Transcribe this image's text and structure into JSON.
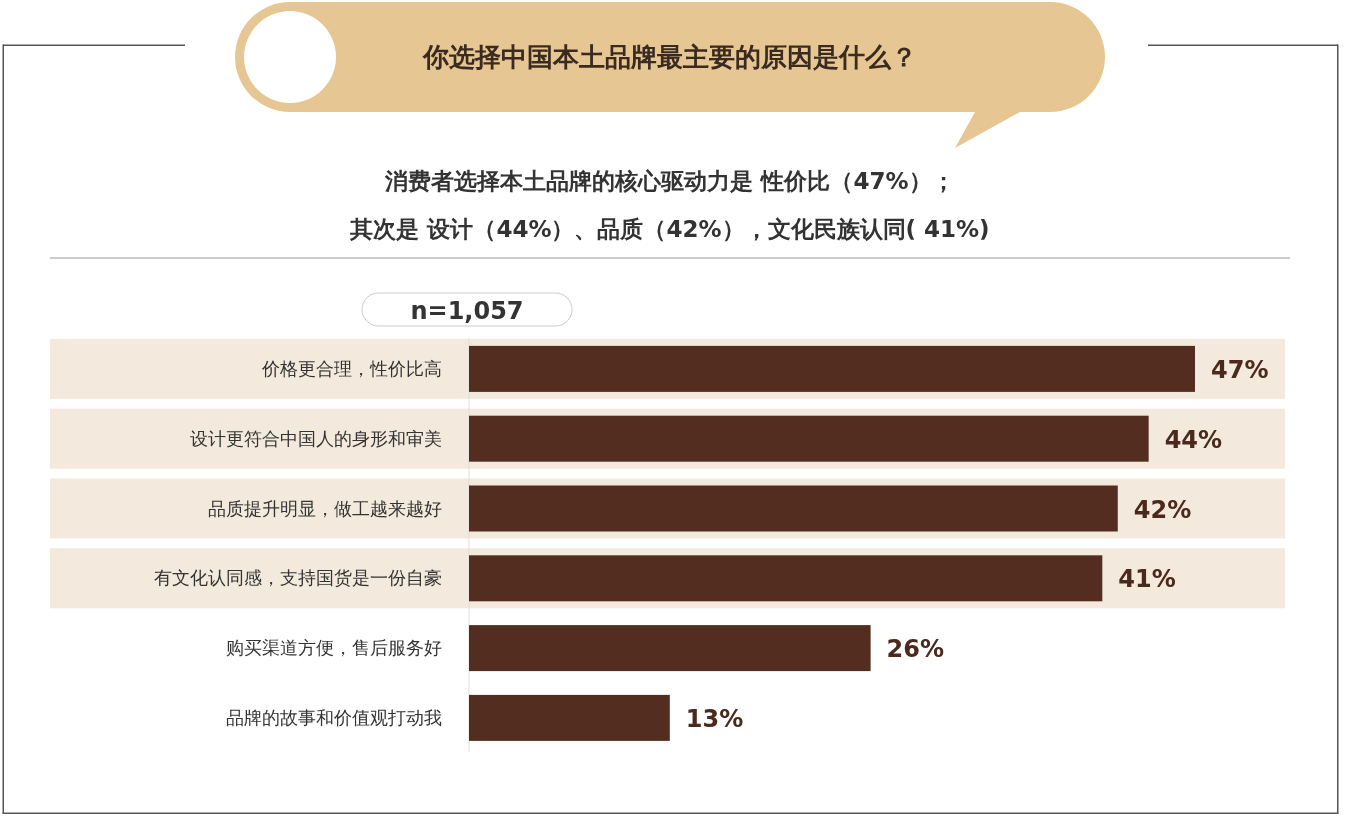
{
  "chart_data": {
    "type": "bar",
    "orientation": "horizontal",
    "title": "你选择中国本土品牌最主要的原因是什么？",
    "subtitle": "消费者选择本土品牌的核心驱动力是  性价比（47%）；其次是  设计（44%）、品质（42%），文化民族认同( 41%)",
    "annotations": [
      "n=1,057"
    ],
    "categories": [
      "价格更合理，性价比高",
      "设计更符合中国人的身形和审美",
      "品质提升明显，做工越来越好",
      "有文化认同感，支持国货是一份自豪",
      "购买渠道方便，售后服务好",
      "品牌的故事和价值观打动我"
    ],
    "values": [
      47,
      44,
      42,
      41,
      26,
      13
    ],
    "value_labels": [
      "47%",
      "44%",
      "42%",
      "41%",
      "26%",
      "13%"
    ],
    "color": "#532e20"
  }
}
